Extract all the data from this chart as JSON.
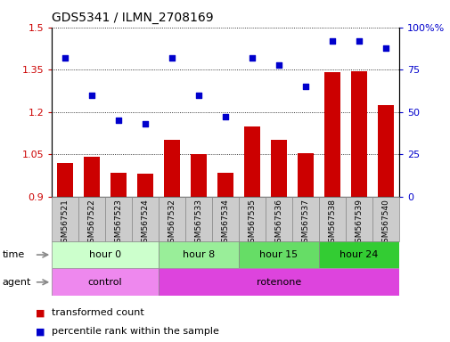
{
  "title": "GDS5341 / ILMN_2708169",
  "samples": [
    "GSM567521",
    "GSM567522",
    "GSM567523",
    "GSM567524",
    "GSM567532",
    "GSM567533",
    "GSM567534",
    "GSM567535",
    "GSM567536",
    "GSM567537",
    "GSM567538",
    "GSM567539",
    "GSM567540"
  ],
  "transformed_count": [
    1.02,
    1.04,
    0.985,
    0.98,
    1.1,
    1.05,
    0.985,
    1.15,
    1.1,
    1.055,
    1.34,
    1.345,
    1.225
  ],
  "percentile_rank": [
    82,
    60,
    45,
    43,
    82,
    60,
    47,
    82,
    78,
    65,
    92,
    92,
    88
  ],
  "ylim_left": [
    0.9,
    1.5
  ],
  "ylim_right": [
    0,
    100
  ],
  "yticks_left": [
    0.9,
    1.05,
    1.2,
    1.35,
    1.5
  ],
  "yticks_right": [
    0,
    25,
    50,
    75,
    100
  ],
  "bar_color": "#cc0000",
  "scatter_color": "#0000cc",
  "time_groups": [
    {
      "label": "hour 0",
      "start": 0,
      "end": 4,
      "color": "#ccffcc"
    },
    {
      "label": "hour 8",
      "start": 4,
      "end": 7,
      "color": "#99ee99"
    },
    {
      "label": "hour 15",
      "start": 7,
      "end": 10,
      "color": "#66dd66"
    },
    {
      "label": "hour 24",
      "start": 10,
      "end": 13,
      "color": "#33cc33"
    }
  ],
  "agent_groups": [
    {
      "label": "control",
      "start": 0,
      "end": 4,
      "color": "#ee88ee"
    },
    {
      "label": "rotenone",
      "start": 4,
      "end": 13,
      "color": "#dd44dd"
    }
  ],
  "legend_red": "transformed count",
  "legend_blue": "percentile rank within the sample",
  "time_label": "time",
  "agent_label": "agent",
  "sample_bg_color": "#cccccc",
  "sample_bg_edge": "#888888"
}
